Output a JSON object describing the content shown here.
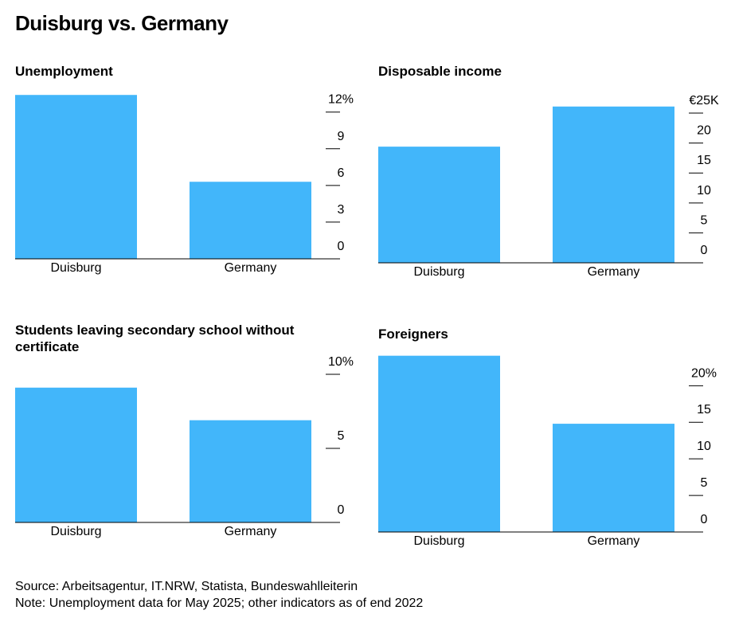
{
  "title": "Duisburg vs. Germany",
  "source": "Source: Arbeitsagentur, IT.NRW, Statista, Bundeswahlleiterin",
  "note": "Note: Unemployment data for May 2025; other indicators as of end 2022",
  "chart_data": [
    {
      "type": "bar",
      "title": "Unemployment",
      "categories": [
        "Duisburg",
        "Germany"
      ],
      "values": [
        13.4,
        6.3
      ],
      "color": "#42b6fa",
      "ylim": [
        0,
        14
      ],
      "yticks": [
        0,
        3,
        6,
        9,
        {
          "value": 12,
          "label": "12%"
        }
      ]
    },
    {
      "type": "bar",
      "title": "Disposable income",
      "categories": [
        "Duisburg",
        "Germany"
      ],
      "values": [
        19.4,
        26.1
      ],
      "color": "#42b6fa",
      "ylim": [
        0,
        27
      ],
      "yticks": [
        0,
        5,
        10,
        15,
        20,
        {
          "value": 25,
          "label": "€25K"
        }
      ]
    },
    {
      "type": "bar",
      "title": "Students leaving secondary school without certificate",
      "categories": [
        "Duisburg",
        "Germany"
      ],
      "values": [
        9.1,
        6.9
      ],
      "color": "#42b6fa",
      "ylim": [
        0,
        10
      ],
      "yticks": [
        0,
        5,
        {
          "value": 10,
          "label": "10%"
        }
      ]
    },
    {
      "type": "bar",
      "title": "Foreigners",
      "categories": [
        "Duisburg",
        "Germany"
      ],
      "values": [
        24.1,
        14.8
      ],
      "color": "#42b6fa",
      "ylim": [
        0,
        24.5
      ],
      "yticks": [
        0,
        5,
        10,
        15,
        {
          "value": 20,
          "label": "20%"
        }
      ]
    }
  ]
}
